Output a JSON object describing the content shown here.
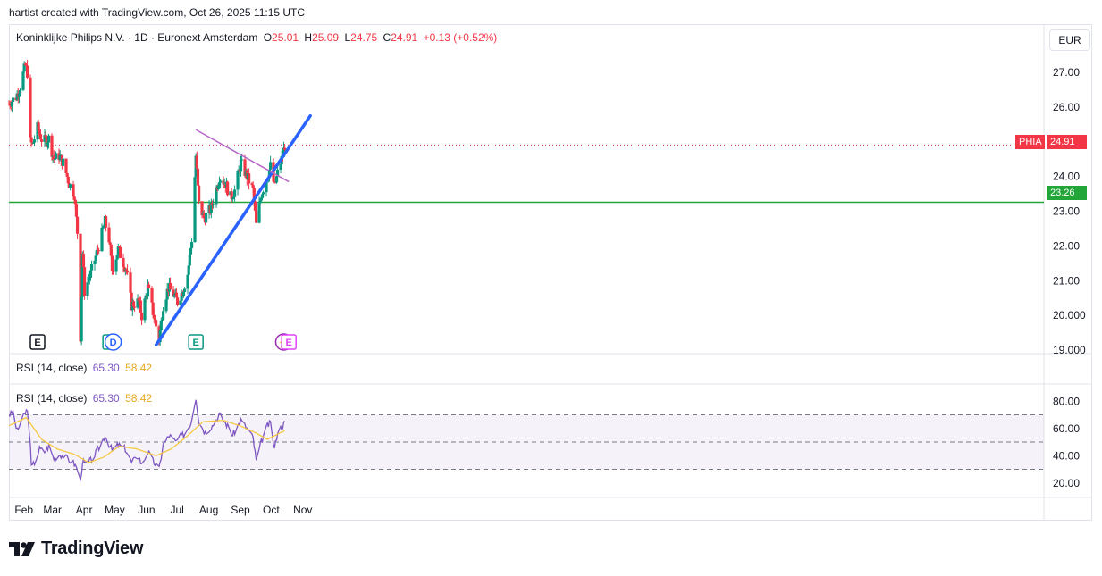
{
  "attribution": "hartist created with TradingView.com, Oct 26, 2025 11:15 UTC",
  "legend": {
    "instrument": "Koninklijke Philips N.V. · 1D · Euronext Amsterdam",
    "o_label": "O",
    "o_value": "25.01",
    "h_label": "H",
    "h_value": "25.09",
    "l_label": "L",
    "l_value": "24.75",
    "c_label": "C",
    "c_value": "24.91",
    "change": "+0.13 (+0.52%)"
  },
  "currency": "EUR",
  "price_tags": {
    "symbol": "PHIA",
    "last": "24.91",
    "level": "23.26"
  },
  "rsi_legend": {
    "label": "RSI (14, close)",
    "rsi": "65.30",
    "ma": "58.42"
  },
  "logo_text": "TradingView",
  "colors": {
    "up": "#089981",
    "down": "#f23645",
    "trend_blue": "#2962ff",
    "trend_purple": "#b667c9",
    "support_green": "#22a63a",
    "rsi_line": "#7e57c2",
    "rsi_ma": "#f5c842"
  },
  "chart_data": {
    "type": "candlestick",
    "x_tick_labels": [
      "Feb",
      "Mar",
      "Apr",
      "May",
      "Jun",
      "Jul",
      "Aug",
      "Sep",
      "Oct",
      "Nov"
    ],
    "y_ticks": [
      "19.000",
      "20.000",
      "21.00",
      "22.00",
      "23.00",
      "24.00",
      "26.00",
      "27.00"
    ],
    "ylim": [
      18.9,
      27.8
    ],
    "x_range": [
      "2025-01-27",
      "2025-11-30"
    ],
    "close_path": [
      [
        "2025-01-27",
        26.1
      ],
      [
        "2025-02-03",
        26.3
      ],
      [
        "2025-02-07",
        26.6
      ],
      [
        "2025-02-12",
        27.2
      ],
      [
        "2025-02-14",
        27.0
      ],
      [
        "2025-02-17",
        25.0
      ],
      [
        "2025-02-19",
        24.9
      ],
      [
        "2025-02-24",
        25.4
      ],
      [
        "2025-03-01",
        25.0
      ],
      [
        "2025-03-07",
        25.1
      ],
      [
        "2025-03-12",
        24.5
      ],
      [
        "2025-03-17",
        24.6
      ],
      [
        "2025-03-21",
        24.4
      ],
      [
        "2025-03-27",
        23.8
      ],
      [
        "2025-04-01",
        23.5
      ],
      [
        "2025-04-04",
        22.4
      ],
      [
        "2025-04-07",
        19.4
      ],
      [
        "2025-04-09",
        21.8
      ],
      [
        "2025-04-11",
        20.7
      ],
      [
        "2025-04-17",
        21.2
      ],
      [
        "2025-04-24",
        21.9
      ],
      [
        "2025-05-01",
        22.7
      ],
      [
        "2025-05-05",
        22.2
      ],
      [
        "2025-05-08",
        21.3
      ],
      [
        "2025-05-14",
        21.9
      ],
      [
        "2025-05-22",
        21.3
      ],
      [
        "2025-05-27",
        20.3
      ],
      [
        "2025-06-03",
        20.4
      ],
      [
        "2025-06-06",
        20.0
      ],
      [
        "2025-06-12",
        20.8
      ],
      [
        "2025-06-17",
        20.1
      ],
      [
        "2025-06-23",
        19.3
      ],
      [
        "2025-06-27",
        20.3
      ],
      [
        "2025-07-02",
        20.8
      ],
      [
        "2025-07-07",
        20.6
      ],
      [
        "2025-07-11",
        20.4
      ],
      [
        "2025-07-16",
        20.7
      ],
      [
        "2025-07-21",
        21.2
      ],
      [
        "2025-07-25",
        22.2
      ],
      [
        "2025-07-29",
        24.6
      ],
      [
        "2025-08-01",
        23.2
      ],
      [
        "2025-08-06",
        22.8
      ],
      [
        "2025-08-13",
        23.1
      ],
      [
        "2025-08-21",
        24.0
      ],
      [
        "2025-08-27",
        23.8
      ],
      [
        "2025-09-01",
        23.4
      ],
      [
        "2025-09-05",
        23.6
      ],
      [
        "2025-09-11",
        24.4
      ],
      [
        "2025-09-17",
        24.0
      ],
      [
        "2025-09-23",
        23.6
      ],
      [
        "2025-09-26",
        22.6
      ],
      [
        "2025-10-01",
        23.5
      ],
      [
        "2025-10-07",
        24.0
      ],
      [
        "2025-10-10",
        24.3
      ],
      [
        "2025-10-14",
        23.7
      ],
      [
        "2025-10-17",
        24.1
      ],
      [
        "2025-10-22",
        24.6
      ],
      [
        "2025-10-24",
        24.91
      ]
    ],
    "support_level": 23.26,
    "trendline_blue": [
      [
        "2025-06-20",
        19.15
      ],
      [
        "2025-11-18",
        25.75
      ]
    ],
    "trendline_purple": [
      [
        "2025-07-29",
        25.35
      ],
      [
        "2025-10-28",
        23.85
      ]
    ],
    "event_markers": [
      {
        "date": "2025-02-24",
        "label": "E",
        "style": "earnings-past"
      },
      {
        "date": "2025-05-06",
        "label": "E",
        "style": "earnings"
      },
      {
        "date": "2025-05-09",
        "label": "D",
        "style": "dividend"
      },
      {
        "date": "2025-07-29",
        "label": "E",
        "style": "earnings"
      },
      {
        "date": "2025-10-23",
        "label": "⚡",
        "style": "news"
      },
      {
        "date": "2025-10-28",
        "label": "E",
        "style": "earnings-future"
      }
    ],
    "rsi": {
      "y_ticks": [
        "20.00",
        "40.00",
        "60.00",
        "80.00"
      ],
      "ylim": [
        10,
        92
      ],
      "levels": [
        70,
        50,
        30
      ],
      "path": [
        [
          "2025-01-27",
          70
        ],
        [
          "2025-01-31",
          72
        ],
        [
          "2025-02-04",
          58
        ],
        [
          "2025-02-08",
          65
        ],
        [
          "2025-02-13",
          73
        ],
        [
          "2025-02-16",
          70
        ],
        [
          "2025-02-18",
          31
        ],
        [
          "2025-02-21",
          35
        ],
        [
          "2025-02-26",
          45
        ],
        [
          "2025-03-03",
          43
        ],
        [
          "2025-03-07",
          47
        ],
        [
          "2025-03-12",
          38
        ],
        [
          "2025-03-18",
          41
        ],
        [
          "2025-03-25",
          38
        ],
        [
          "2025-04-01",
          34
        ],
        [
          "2025-04-04",
          30
        ],
        [
          "2025-04-07",
          21
        ],
        [
          "2025-04-09",
          36
        ],
        [
          "2025-04-12",
          33
        ],
        [
          "2025-04-19",
          38
        ],
        [
          "2025-04-26",
          47
        ],
        [
          "2025-05-01",
          55
        ],
        [
          "2025-05-04",
          50
        ],
        [
          "2025-05-08",
          44
        ],
        [
          "2025-05-14",
          48
        ],
        [
          "2025-05-21",
          45
        ],
        [
          "2025-05-27",
          35
        ],
        [
          "2025-06-03",
          40
        ],
        [
          "2025-06-06",
          33
        ],
        [
          "2025-06-12",
          43
        ],
        [
          "2025-06-17",
          36
        ],
        [
          "2025-06-23",
          30
        ],
        [
          "2025-06-27",
          48
        ],
        [
          "2025-07-03",
          55
        ],
        [
          "2025-07-09",
          50
        ],
        [
          "2025-07-14",
          54
        ],
        [
          "2025-07-18",
          56
        ],
        [
          "2025-07-24",
          64
        ],
        [
          "2025-07-29",
          83
        ],
        [
          "2025-08-01",
          65
        ],
        [
          "2025-08-07",
          57
        ],
        [
          "2025-08-14",
          62
        ],
        [
          "2025-08-21",
          70
        ],
        [
          "2025-08-28",
          63
        ],
        [
          "2025-09-03",
          55
        ],
        [
          "2025-09-11",
          66
        ],
        [
          "2025-09-17",
          60
        ],
        [
          "2025-09-23",
          53
        ],
        [
          "2025-09-26",
          36
        ],
        [
          "2025-10-01",
          50
        ],
        [
          "2025-10-07",
          62
        ],
        [
          "2025-10-10",
          64
        ],
        [
          "2025-10-14",
          45
        ],
        [
          "2025-10-17",
          58
        ],
        [
          "2025-10-22",
          62
        ],
        [
          "2025-10-24",
          65.3
        ]
      ],
      "ma_path": [
        [
          "2025-01-27",
          62
        ],
        [
          "2025-02-13",
          68
        ],
        [
          "2025-02-28",
          52
        ],
        [
          "2025-03-15",
          45
        ],
        [
          "2025-04-01",
          41
        ],
        [
          "2025-04-15",
          35
        ],
        [
          "2025-04-30",
          39
        ],
        [
          "2025-05-15",
          47
        ],
        [
          "2025-06-01",
          45
        ],
        [
          "2025-06-20",
          40
        ],
        [
          "2025-07-05",
          45
        ],
        [
          "2025-07-20",
          54
        ],
        [
          "2025-08-05",
          65
        ],
        [
          "2025-08-25",
          66
        ],
        [
          "2025-09-10",
          62
        ],
        [
          "2025-09-25",
          57
        ],
        [
          "2025-10-07",
          52
        ],
        [
          "2025-10-24",
          58.42
        ]
      ]
    }
  }
}
